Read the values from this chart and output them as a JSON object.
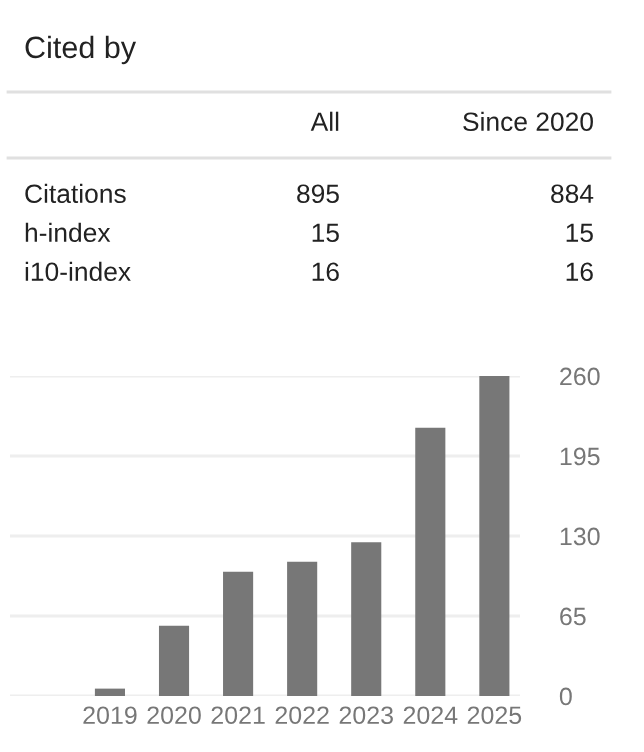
{
  "chart_data": [
    {
      "type": "other",
      "title": "Cited by",
      "categories": [
        "All",
        "Since 2020"
      ],
      "y_categories": [
        "Citations",
        "h-index",
        "i10-index"
      ],
      "cell_labels": [
        [
          "895",
          "884"
        ],
        [
          "15",
          "15"
        ],
        [
          "16",
          "16"
        ]
      ]
    },
    {
      "type": "bar",
      "categories": [
        "2019",
        "2020",
        "2021",
        "2022",
        "2023",
        "2024",
        "2025"
      ],
      "values": [
        6,
        57,
        101,
        109,
        125,
        218,
        260
      ],
      "color": "#777777",
      "ylim": [
        0,
        260
      ],
      "yticks": [
        0,
        65,
        130,
        195,
        260
      ],
      "grid": "y",
      "legend": false
    }
  ]
}
